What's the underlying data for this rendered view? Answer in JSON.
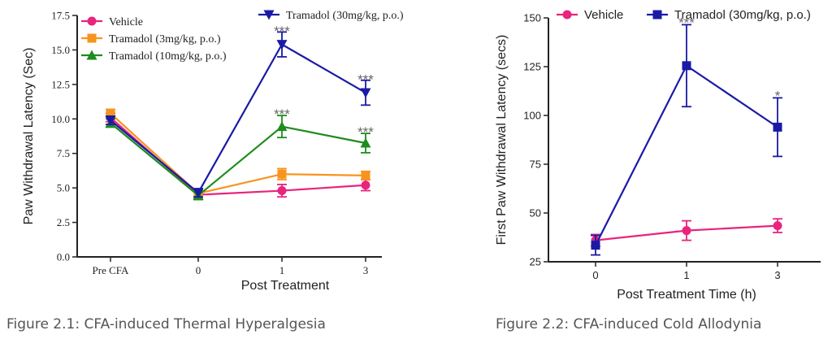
{
  "captions": {
    "fig1": "Figure 2.1: CFA-induced Thermal Hyperalgesia",
    "fig2": "Figure 2.2: CFA-induced Cold Allodynia"
  },
  "chart_data": [
    {
      "type": "line",
      "title": "",
      "xlabel": "Post Treatment",
      "ylabel": "Paw Withdrawal Latency (Sec)",
      "categories": [
        "Pre CFA",
        "0",
        "1",
        "3"
      ],
      "ylim": [
        0,
        17.5
      ],
      "yticks": [
        "0.0",
        "2.5",
        "5.0",
        "7.5",
        "10.0",
        "12.5",
        "15.0",
        "17.5"
      ],
      "grid": false,
      "legend_position": "top",
      "series": [
        {
          "name": "Vehicle",
          "color": "#e8247c",
          "marker": "circle",
          "values": [
            10.1,
            4.5,
            4.8,
            5.2
          ],
          "errors": [
            0.3,
            0.3,
            0.45,
            0.4
          ]
        },
        {
          "name": "Tramadol (3mg/kg, p.o.)",
          "color": "#f7941d",
          "marker": "square",
          "values": [
            10.4,
            4.6,
            6.0,
            5.9
          ],
          "errors": [
            0.3,
            0.3,
            0.4,
            0.3
          ]
        },
        {
          "name": "Tramadol (10mg/kg, p.o.)",
          "color": "#1e8c1e",
          "marker": "triangle-up",
          "values": [
            9.7,
            4.45,
            9.45,
            8.25
          ],
          "errors": [
            0.3,
            0.3,
            0.8,
            0.7
          ]
        },
        {
          "name": "Tramadol (30mg/kg, p.o.)",
          "color": "#1a1aa6",
          "marker": "triangle-down",
          "values": [
            9.9,
            4.65,
            15.4,
            11.9
          ],
          "errors": [
            0.3,
            0.3,
            0.9,
            0.9
          ]
        }
      ],
      "annotations": [
        {
          "category": "1",
          "y": 16.5,
          "text": "***"
        },
        {
          "category": "3",
          "y": 13.0,
          "text": "***"
        },
        {
          "category": "1",
          "y": 10.5,
          "text": "***"
        },
        {
          "category": "3",
          "y": 9.2,
          "text": "***"
        }
      ]
    },
    {
      "type": "line",
      "title": "",
      "xlabel": "Post Treatment Time (h)",
      "ylabel": "First Paw Withdrawal Latency (secs)",
      "categories": [
        "0",
        "1",
        "3"
      ],
      "ylim": [
        25,
        150
      ],
      "yticks": [
        "25",
        "50",
        "75",
        "100",
        "125",
        "150"
      ],
      "grid": false,
      "legend_position": "top",
      "series": [
        {
          "name": "Vehicle",
          "color": "#e8247c",
          "marker": "circle",
          "values": [
            36,
            41,
            43.5
          ],
          "errors": [
            3,
            5,
            3.5
          ]
        },
        {
          "name": "Tramadol (30mg/kg, p.o.)",
          "color": "#1a1aa6",
          "marker": "square",
          "values": [
            33.5,
            125.5,
            94
          ],
          "errors": [
            5,
            21,
            15
          ]
        }
      ],
      "annotations": [
        {
          "category": "1",
          "y": 148.5,
          "text": "***"
        },
        {
          "category": "3",
          "y": 111,
          "text": "*"
        }
      ]
    }
  ]
}
